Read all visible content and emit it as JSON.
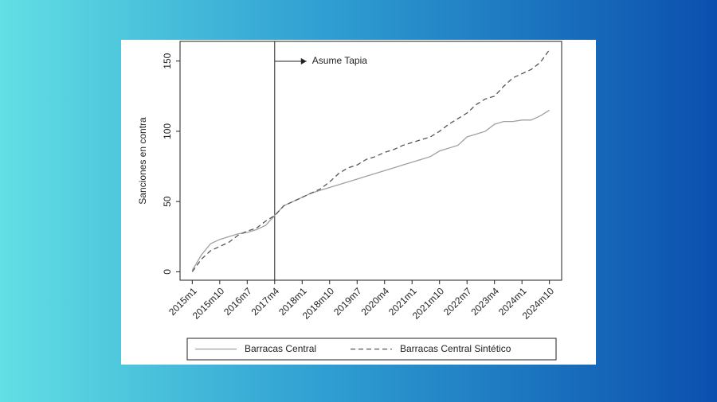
{
  "chart_data": {
    "type": "line",
    "ylabel": "Sanciones en contra",
    "annotation": "Asume Tapia",
    "vline": 687,
    "x": [
      660,
      663,
      666,
      669,
      672,
      675,
      678,
      681,
      684,
      687,
      690,
      693,
      696,
      699,
      702,
      705,
      708,
      711,
      714,
      717,
      720,
      723,
      726,
      729,
      732,
      735,
      738,
      741,
      744,
      747,
      750,
      753,
      756,
      759,
      762,
      765,
      768,
      771,
      774,
      777
    ],
    "series": [
      {
        "name": "Barracas Central",
        "color": "#a0a0a0",
        "dash": false,
        "values": [
          1,
          12,
          20,
          23,
          25,
          27,
          28,
          30,
          33,
          40,
          47,
          50,
          53,
          56,
          58,
          60,
          62,
          64,
          66,
          68,
          70,
          72,
          74,
          76,
          78,
          80,
          82,
          86,
          88,
          90,
          96,
          98,
          100,
          105,
          107,
          107,
          108,
          108,
          111,
          115
        ]
      },
      {
        "name": "Barracas Central Sintético",
        "color": "#555555",
        "dash": true,
        "values": [
          0,
          9,
          15,
          18,
          21,
          26,
          29,
          31,
          36,
          40,
          47,
          50,
          53,
          56,
          59,
          64,
          70,
          74,
          76,
          80,
          82,
          85,
          87,
          90,
          92,
          94,
          96,
          100,
          105,
          109,
          113,
          119,
          123,
          125,
          132,
          138,
          141,
          144,
          149,
          158
        ]
      }
    ],
    "xlim": [
      656,
      781
    ],
    "xticks": [
      {
        "value": 660,
        "label": "2015m1"
      },
      {
        "value": 669,
        "label": "2015m10"
      },
      {
        "value": 678,
        "label": "2016m7"
      },
      {
        "value": 687,
        "label": "2017m4"
      },
      {
        "value": 696,
        "label": "2018m1"
      },
      {
        "value": 705,
        "label": "2018m10"
      },
      {
        "value": 714,
        "label": "2019m7"
      },
      {
        "value": 723,
        "label": "2020m4"
      },
      {
        "value": 732,
        "label": "2021m1"
      },
      {
        "value": 741,
        "label": "2021m10"
      },
      {
        "value": 750,
        "label": "2022m7"
      },
      {
        "value": 759,
        "label": "2023m4"
      },
      {
        "value": 768,
        "label": "2024m1"
      },
      {
        "value": 777,
        "label": "2024m10"
      }
    ],
    "ylim": [
      -6,
      164
    ],
    "yticks": [
      0,
      50,
      100,
      150
    ]
  }
}
